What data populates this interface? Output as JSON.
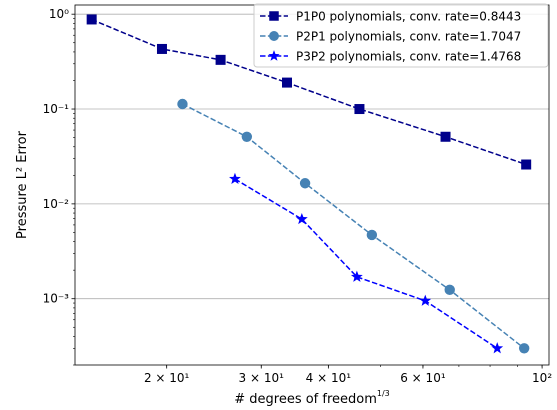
{
  "chart_data": {
    "type": "line",
    "xlabel": "# degrees of freedom",
    "xlabel_exponent": "1/3",
    "ylabel": "Pressure L² Error",
    "xscale": "log",
    "yscale": "log",
    "xlim": [
      13.5,
      103
    ],
    "ylim": [
      0.0002,
      1.25
    ],
    "grid": "y-major",
    "legend_position": "top-right",
    "x_ticks": [
      {
        "value": 20,
        "label": "2 × 10¹"
      },
      {
        "value": 30,
        "label": "3 × 10¹"
      },
      {
        "value": 40,
        "label": "4 × 10¹"
      },
      {
        "value": 60,
        "label": "6 × 10¹"
      },
      {
        "value": 100,
        "label": "10²"
      }
    ],
    "y_ticks": [
      {
        "value": 1,
        "label": "10⁰"
      },
      {
        "value": 0.1,
        "label": "10⁻¹"
      },
      {
        "value": 0.01,
        "label": "10⁻²"
      },
      {
        "value": 0.001,
        "label": "10⁻³"
      }
    ],
    "series": [
      {
        "name": "P1P0 polynomials, conv. rate=0.8443",
        "color": "#00008b",
        "marker": "square",
        "x": [
          14.5,
          19.6,
          25.2,
          33.5,
          45.7,
          66.1,
          93.4
        ],
        "y": [
          0.88,
          0.43,
          0.33,
          0.19,
          0.1,
          0.051,
          0.026
        ]
      },
      {
        "name": "P2P1 polynomials, conv. rate=1.7047",
        "color": "#4682b4",
        "marker": "circle",
        "x": [
          21.4,
          28.2,
          36.2,
          48.2,
          67.3,
          92.6
        ],
        "y": [
          0.113,
          0.051,
          0.0165,
          0.0047,
          0.00124,
          0.0003
        ]
      },
      {
        "name": "P3P2 polynomials, conv. rate=1.4768",
        "color": "#0000ff",
        "marker": "star",
        "x": [
          26.8,
          35.7,
          45.2,
          60.6,
          82.5
        ],
        "y": [
          0.0183,
          0.0069,
          0.0017,
          0.00095,
          0.0003
        ]
      }
    ]
  }
}
